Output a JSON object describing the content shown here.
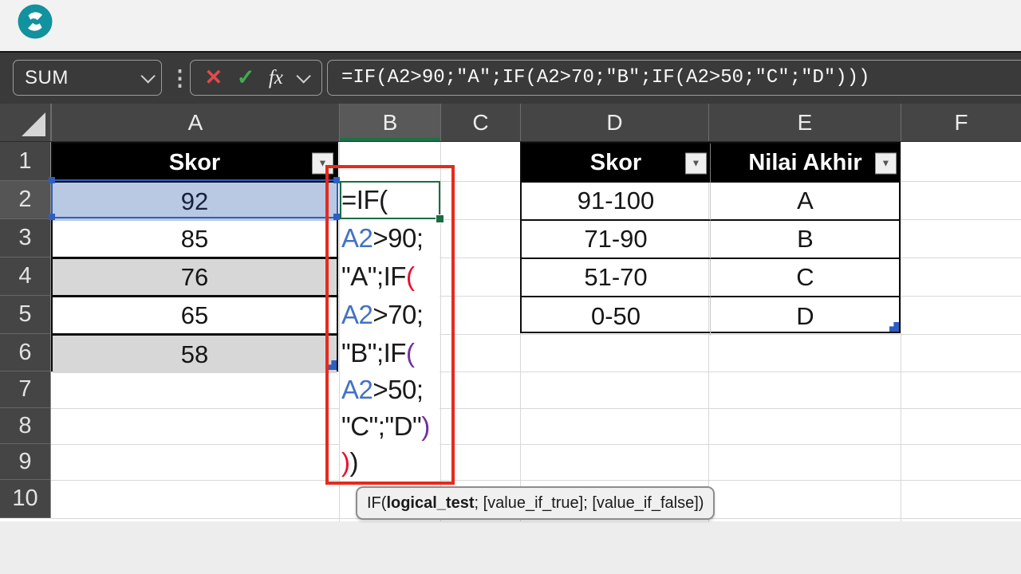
{
  "formula_bar": {
    "name_box_value": "SUM",
    "formula": "=IF(A2>90;\"A\";IF(A2>70;\"B\";IF(A2>50;\"C\";\"D\")))"
  },
  "icons": {
    "dots": "⋮",
    "cancel": "✕",
    "confirm": "✓",
    "fx": "fx",
    "filter_arrow": "▼"
  },
  "grid": {
    "column_headers": [
      "A",
      "B",
      "C",
      "D",
      "E",
      "F"
    ],
    "row_headers": [
      "1",
      "2",
      "3",
      "4",
      "5",
      "6",
      "7",
      "8",
      "9",
      "10"
    ],
    "active_column": "B",
    "active_row": "2"
  },
  "score_table": {
    "header": "Skor",
    "rows": [
      "92",
      "85",
      "76",
      "65",
      "58"
    ]
  },
  "formula_cell": {
    "lines": [
      [
        {
          "t": "=IF(",
          "c": "k"
        }
      ],
      [
        {
          "t": "A2",
          "c": "b"
        },
        {
          "t": ">90;",
          "c": "k"
        }
      ],
      [
        {
          "t": "\"A\";IF",
          "c": "k"
        },
        {
          "t": "(",
          "c": "r"
        }
      ],
      [
        {
          "t": "A2",
          "c": "b"
        },
        {
          "t": ">70;",
          "c": "k"
        }
      ],
      [
        {
          "t": "\"B\";IF",
          "c": "k"
        },
        {
          "t": "(",
          "c": "p"
        }
      ],
      [
        {
          "t": "A2",
          "c": "b"
        },
        {
          "t": ">50;",
          "c": "k"
        }
      ],
      [
        {
          "t": "\"C\";\"D\"",
          "c": "k"
        },
        {
          "t": ")",
          "c": "p"
        }
      ],
      [
        {
          "t": ")",
          "c": "r"
        },
        {
          "t": ")",
          "c": "k"
        }
      ]
    ]
  },
  "lookup_table": {
    "headers": [
      "Skor",
      "Nilai Akhir"
    ],
    "rows": [
      [
        "91-100",
        "A"
      ],
      [
        "71-90",
        "B"
      ],
      [
        "51-70",
        "C"
      ],
      [
        "0-50",
        "D"
      ]
    ]
  },
  "tooltip": {
    "func": "IF(",
    "bold_arg": "logical_test",
    "rest": "; [value_if_true]; [value_if_false])"
  },
  "colors": {
    "logo_teal": "#12919e",
    "reference_blue": "#2d5fc0",
    "active_cell_green": "#1c6b43",
    "annotation_red": "#e52a1d",
    "formula_ref_blue": "#4472c4",
    "paren_red": "#e8102c",
    "paren_purple": "#7030a0"
  }
}
